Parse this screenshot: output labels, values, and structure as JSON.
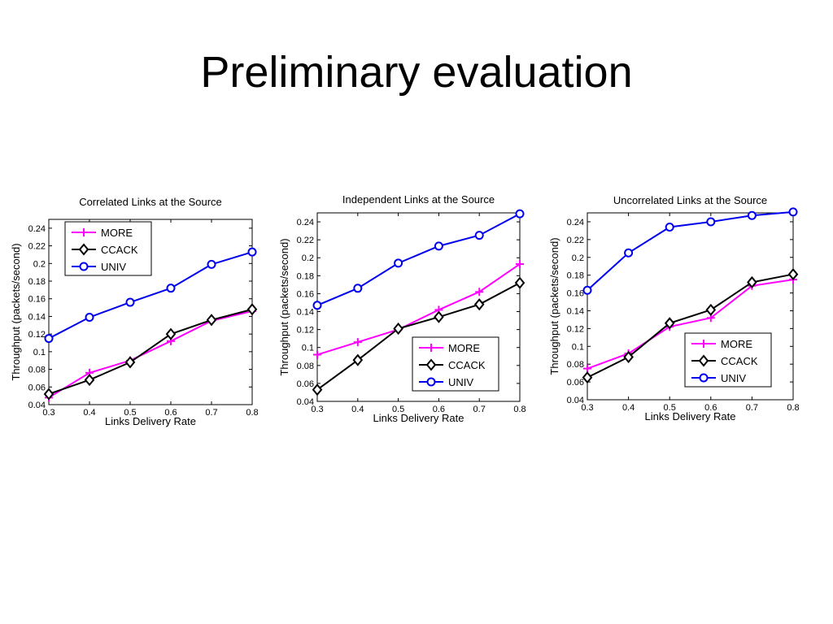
{
  "slide": {
    "title": "Preliminary evaluation"
  },
  "chart_data": [
    {
      "type": "line",
      "title": "Correlated Links at the Source",
      "xlabel": "Links Delivery Rate",
      "ylabel": "Throughput (packets/second)",
      "x": [
        0.3,
        0.4,
        0.5,
        0.6,
        0.7,
        0.8
      ],
      "xlim": [
        0.3,
        0.8
      ],
      "ylim": [
        0.04,
        0.25
      ],
      "xticks": [
        "0.3",
        "0.4",
        "0.5",
        "0.6",
        "0.7",
        "0.8"
      ],
      "yticks": [
        "0.04",
        "0.06",
        "0.08",
        "0.1",
        "0.12",
        "0.14",
        "0.16",
        "0.18",
        "0.2",
        "0.22",
        "0.24"
      ],
      "legend_position": "top-left",
      "series": [
        {
          "name": "MORE",
          "color": "#ff00ff",
          "marker": "plus",
          "values": [
            0.048,
            0.076,
            0.09,
            0.112,
            0.135,
            0.146
          ]
        },
        {
          "name": "CCACK",
          "color": "#000000",
          "marker": "diamond",
          "values": [
            0.052,
            0.068,
            0.088,
            0.12,
            0.136,
            0.148
          ]
        },
        {
          "name": "UNIV",
          "color": "#0000ee",
          "marker": "circle",
          "values": [
            0.115,
            0.139,
            0.156,
            0.172,
            0.199,
            0.213
          ]
        }
      ]
    },
    {
      "type": "line",
      "title": "Independent Links at the Source",
      "xlabel": "Links Delivery Rate",
      "ylabel": "Throughput (packets/second)",
      "x": [
        0.3,
        0.4,
        0.5,
        0.6,
        0.7,
        0.8
      ],
      "xlim": [
        0.3,
        0.8
      ],
      "ylim": [
        0.04,
        0.25
      ],
      "xticks": [
        "0.3",
        "0.4",
        "0.5",
        "0.6",
        "0.7",
        "0.8"
      ],
      "yticks": [
        "0.04",
        "0.06",
        "0.08",
        "0.1",
        "0.12",
        "0.14",
        "0.16",
        "0.18",
        "0.2",
        "0.22",
        "0.24"
      ],
      "legend_position": "bottom-right",
      "series": [
        {
          "name": "MORE",
          "color": "#ff00ff",
          "marker": "plus",
          "values": [
            0.092,
            0.106,
            0.12,
            0.142,
            0.162,
            0.193
          ]
        },
        {
          "name": "CCACK",
          "color": "#000000",
          "marker": "diamond",
          "values": [
            0.053,
            0.086,
            0.121,
            0.134,
            0.148,
            0.172
          ]
        },
        {
          "name": "UNIV",
          "color": "#0000ee",
          "marker": "circle",
          "values": [
            0.147,
            0.166,
            0.194,
            0.213,
            0.225,
            0.249
          ]
        }
      ]
    },
    {
      "type": "line",
      "title": "Uncorrelated Links at the Source",
      "xlabel": "Links Delivery Rate",
      "ylabel": "Throughput (packets/second)",
      "x": [
        0.3,
        0.4,
        0.5,
        0.6,
        0.7,
        0.8
      ],
      "xlim": [
        0.3,
        0.8
      ],
      "ylim": [
        0.04,
        0.25
      ],
      "xticks": [
        "0.3",
        "0.4",
        "0.5",
        "0.6",
        "0.7",
        "0.8"
      ],
      "yticks": [
        "0.04",
        "0.06",
        "0.08",
        "0.1",
        "0.12",
        "0.14",
        "0.16",
        "0.18",
        "0.2",
        "0.22",
        "0.24"
      ],
      "legend_position": "bottom-right",
      "series": [
        {
          "name": "MORE",
          "color": "#ff00ff",
          "marker": "plus",
          "values": [
            0.075,
            0.092,
            0.122,
            0.132,
            0.168,
            0.175
          ]
        },
        {
          "name": "CCACK",
          "color": "#000000",
          "marker": "diamond",
          "values": [
            0.065,
            0.088,
            0.126,
            0.141,
            0.172,
            0.181
          ]
        },
        {
          "name": "UNIV",
          "color": "#0000ee",
          "marker": "circle",
          "values": [
            0.163,
            0.205,
            0.234,
            0.24,
            0.247,
            0.251
          ]
        }
      ]
    }
  ]
}
